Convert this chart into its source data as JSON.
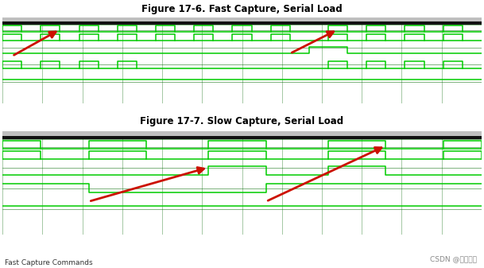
{
  "title1": "Figure 17-6. Fast Capture, Serial Load",
  "title2": "Figure 17-7. Slow Capture, Serial Load",
  "watermark": "CSDN @华子闲嘴",
  "panel_bg": "#000000",
  "header_bg_dark": "#111111",
  "header_bg_light": "#aaaaaa",
  "signal_color": "#00cc00",
  "grid_color": "#006600",
  "arrow_color": "#cc1100",
  "title_fontsize": 8.5,
  "wm_fontsize": 6.5,
  "fig_bg": "#ffffff",
  "bottom_text": "Fast Capture Commands"
}
